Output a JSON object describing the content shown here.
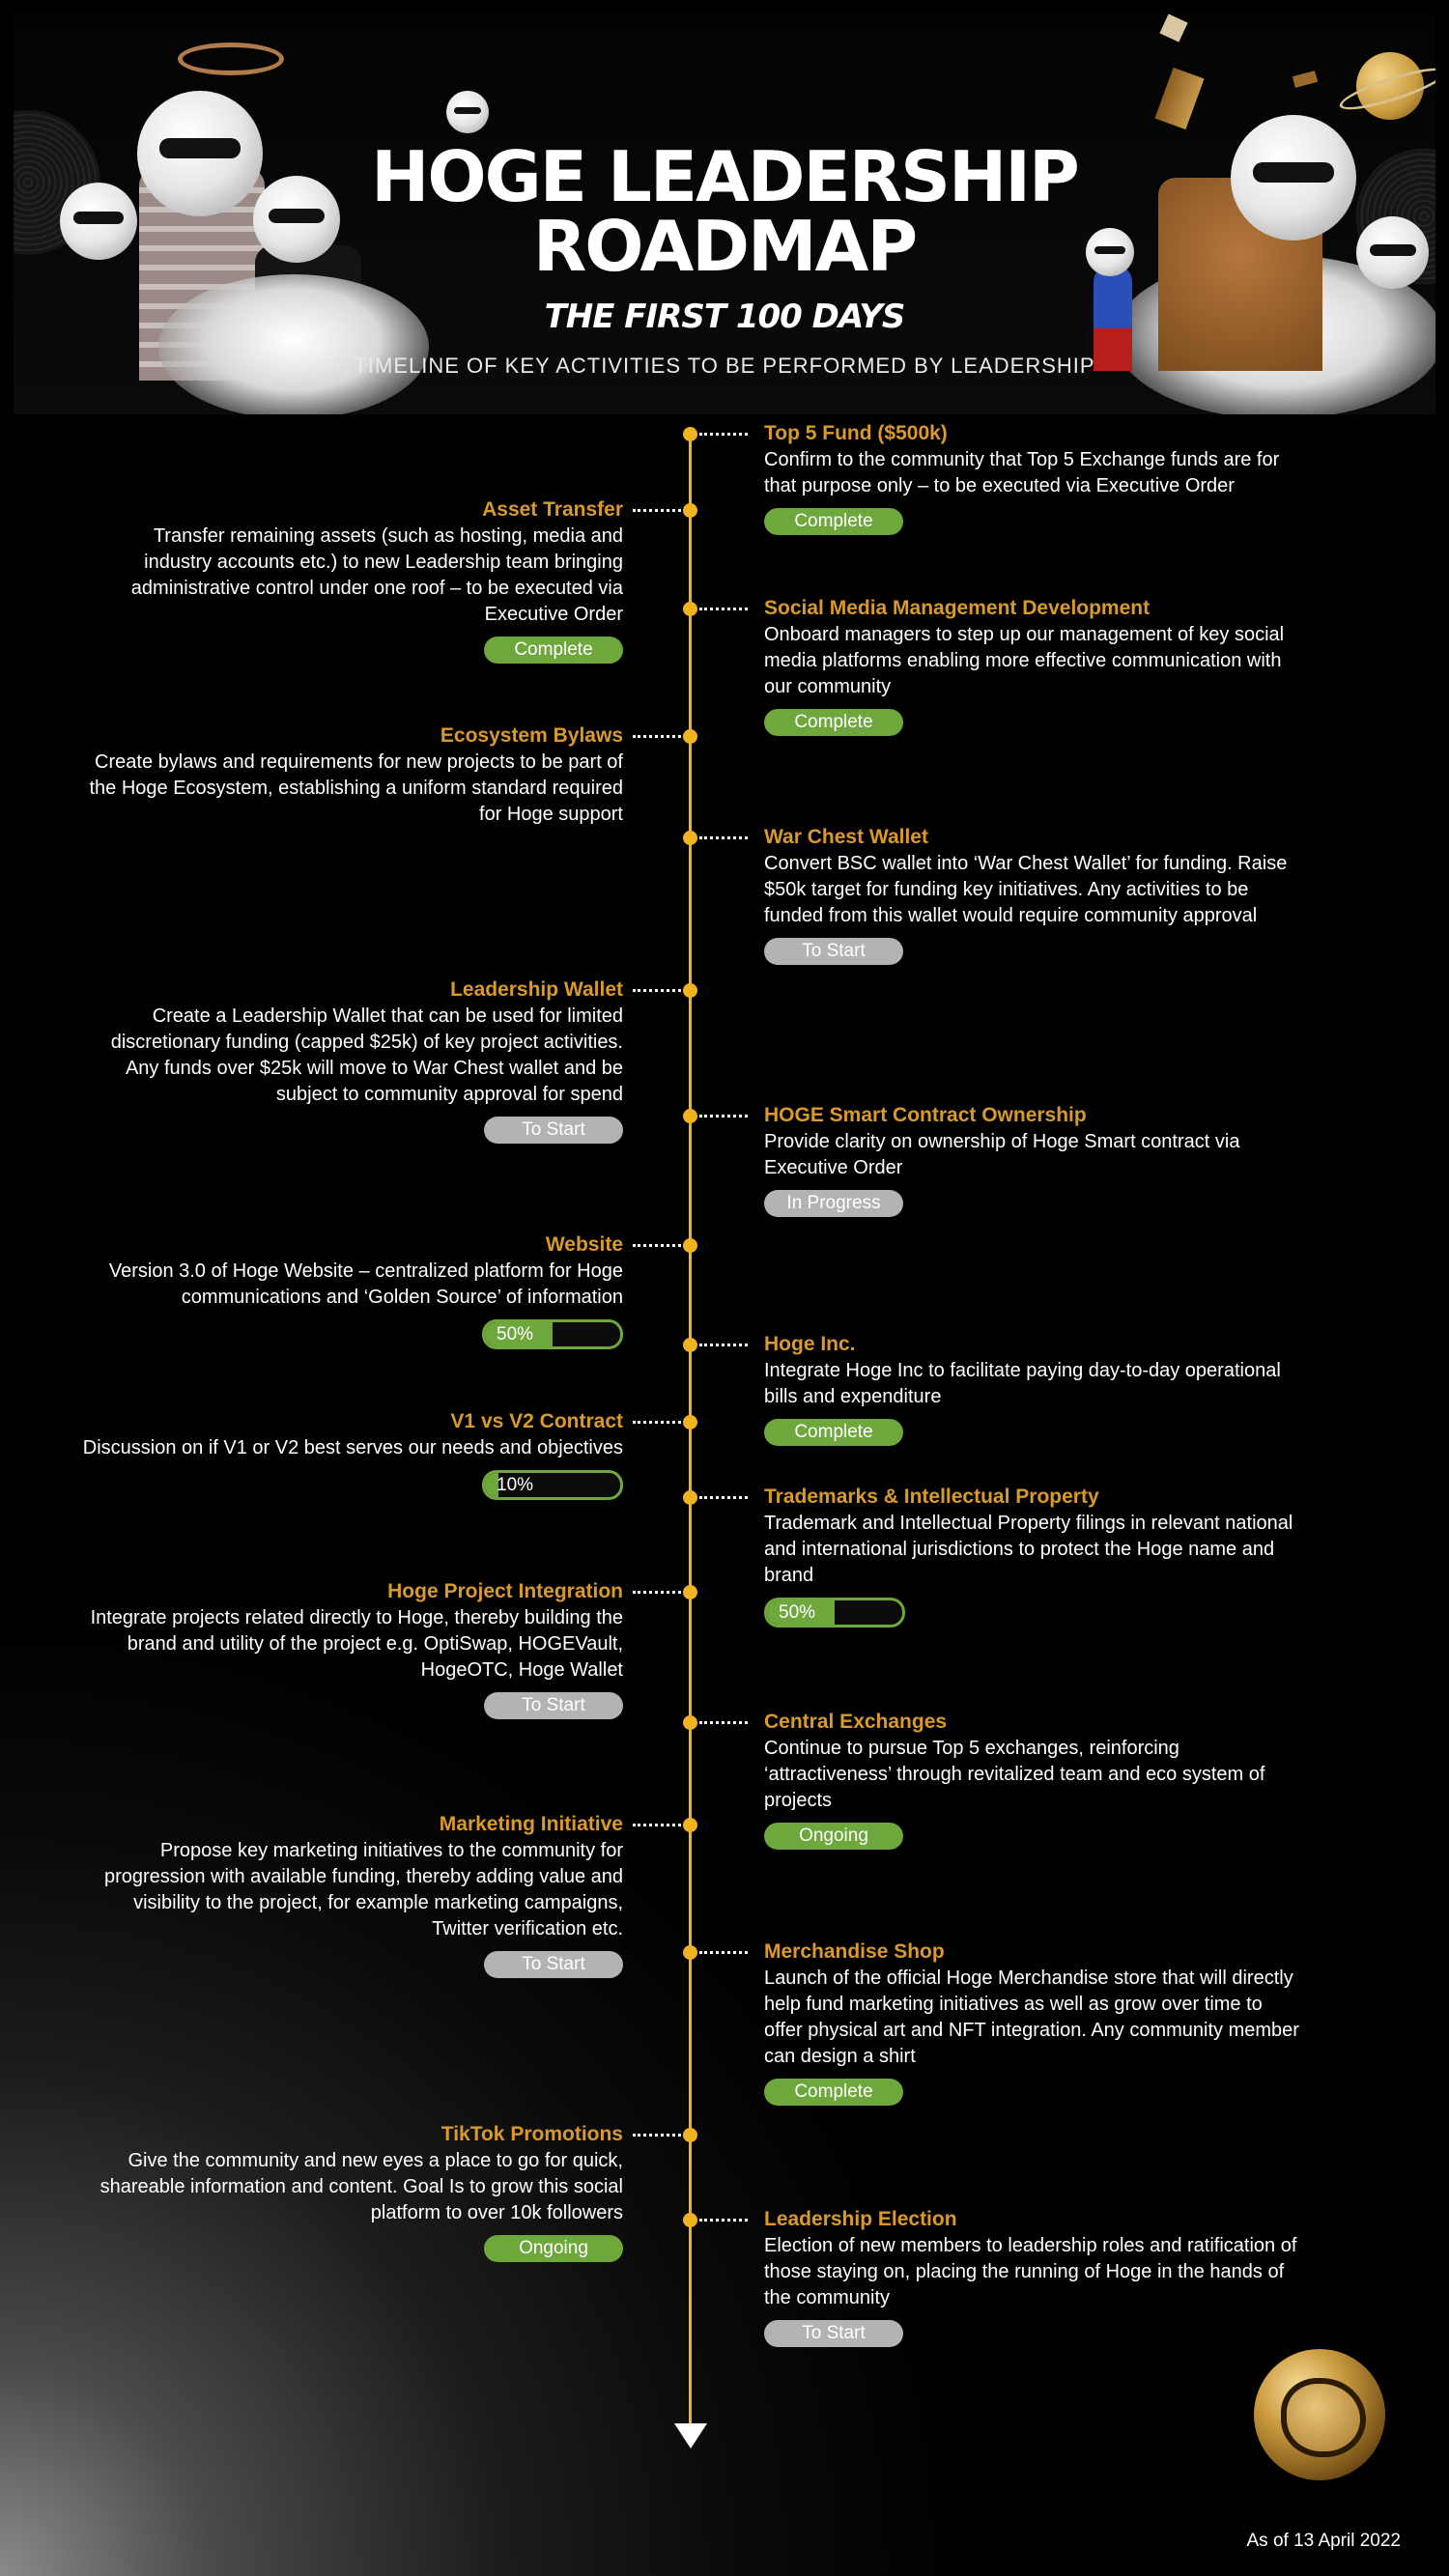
{
  "header": {
    "title_line1": "HOGE LEADERSHIP",
    "title_line2": "ROADMAP",
    "subtitle": "THE FIRST 100 DAYS",
    "tagline": "TIMELINE OF KEY ACTIVITIES TO BE PERFORMED BY LEADERSHIP"
  },
  "timeline": {
    "left": [
      {
        "title": "Asset Transfer",
        "desc": "Transfer remaining assets (such as hosting, media and industry accounts etc.) to new Leadership team bringing administrative control under one roof – to be executed via Executive Order",
        "status": "Complete"
      },
      {
        "title": "Ecosystem Bylaws",
        "desc": "Create bylaws and requirements for new projects to be part of the Hoge Ecosystem, establishing a uniform standard required for Hoge support"
      },
      {
        "title": "Leadership Wallet",
        "desc": "Create a Leadership Wallet that can be used for limited discretionary funding (capped $25k) of key project activities. Any funds over $25k will move to War Chest wallet and be subject to community approval for spend",
        "status": "To Start"
      },
      {
        "title": "Website",
        "desc": "Version 3.0 of Hoge Website – centralized platform for Hoge communications and ‘Golden Source’ of information",
        "progress_label": "50%",
        "progress": 0.5
      },
      {
        "title": "V1 vs V2 Contract",
        "desc": "Discussion on if V1 or V2 best serves our needs and objectives",
        "progress_label": "10%",
        "progress": 0.1
      },
      {
        "title": "Hoge Project Integration",
        "desc": "Integrate projects related directly to Hoge, thereby building the brand and utility of the project e.g. OptiSwap, HOGEVault, HogeOTC, Hoge Wallet",
        "status": "To Start"
      },
      {
        "title": "Marketing Initiative",
        "desc": "Propose key marketing initiatives to the community for progression with available funding, thereby adding value and visibility to the project, for example marketing campaigns, Twitter verification etc.",
        "status": "To Start"
      },
      {
        "title": "TikTok Promotions",
        "desc": "Give the community and new eyes a place to go for quick, shareable information and content. Goal Is to grow this social platform to over 10k followers",
        "status": "Ongoing"
      }
    ],
    "right": [
      {
        "title": "Top 5 Fund ($500k)",
        "desc": "Confirm to the community that Top 5 Exchange funds are for that purpose only – to be executed via Executive Order",
        "status": "Complete"
      },
      {
        "title": "Social Media Management Development",
        "desc": "Onboard managers to step up our management of key social media platforms enabling more effective communication with our community",
        "status": "Complete"
      },
      {
        "title": "War Chest Wallet",
        "desc": "Convert BSC wallet into ‘War Chest Wallet’ for funding. Raise $50k target for funding key initiatives. Any activities to be funded from this wallet would require community approval",
        "status": "To Start"
      },
      {
        "title": "HOGE Smart Contract Ownership",
        "desc": "Provide clarity on ownership of Hoge Smart contract via Executive Order",
        "status": "In Progress"
      },
      {
        "title": "Hoge Inc.",
        "desc": "Integrate Hoge Inc to facilitate paying day-to-day operational bills and expenditure",
        "status": "Complete"
      },
      {
        "title": "Trademarks & Intellectual Property",
        "desc": "Trademark and Intellectual Property filings in relevant national and international jurisdictions to protect the Hoge name and brand",
        "progress_label": "50%",
        "progress": 0.5
      },
      {
        "title": "Central Exchanges",
        "desc": "Continue to pursue Top 5 exchanges, reinforcing ‘attractiveness’ through revitalized team and eco system of projects",
        "status": "Ongoing"
      },
      {
        "title": "Merchandise Shop",
        "desc": "Launch of the official Hoge Merchandise store that will directly help fund marketing initiatives as well as grow over time to offer physical art and NFT integration. Any community member can design a shirt",
        "status": "Complete"
      },
      {
        "title": "Leadership Election",
        "desc": "Election of new members to leadership roles and ratification of those staying on, placing the running of Hoge in the hands of the community",
        "status": "To Start"
      }
    ]
  },
  "colors": {
    "accent_gold": "#f2b320",
    "title_orange": "#d99a2b",
    "status_green": "#6ea73c",
    "status_grey": "#b3b3b3"
  },
  "icons": [
    "hoge-mascot-icon",
    "cloud-icon",
    "planet-icon",
    "hoge-logo-icon"
  ],
  "footer": {
    "as_of": "As of 13 April 2022"
  }
}
